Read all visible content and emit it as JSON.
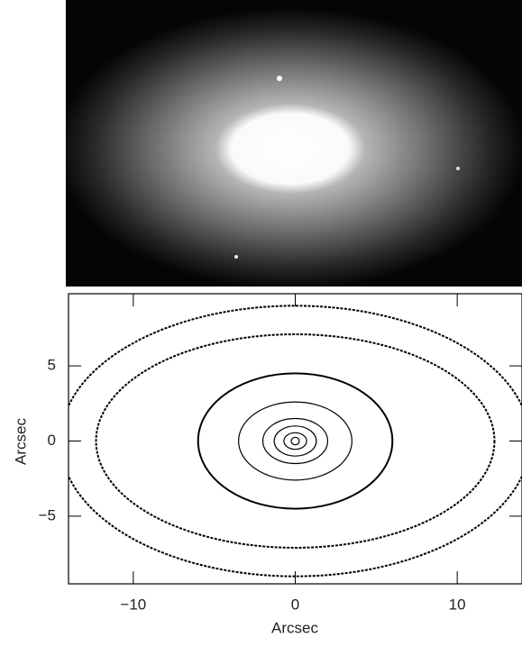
{
  "chart_data": {
    "type": "contour",
    "xlabel": "Arcsec",
    "ylabel": "Arcsec",
    "xlim": [
      -14,
      14
    ],
    "ylim": [
      -9.5,
      9.8
    ],
    "xticks": [
      {
        "value": -10,
        "label": "−10"
      },
      0,
      10
    ],
    "yticks": [
      {
        "value": -5,
        "label": "−5"
      },
      0,
      5
    ],
    "color": "#000000",
    "contours": [
      {
        "a": 0.25,
        "b": 0.25
      },
      {
        "a": 0.7,
        "b": 0.55
      },
      {
        "a": 1.3,
        "b": 1.0
      },
      {
        "a": 2.0,
        "b": 1.5
      },
      {
        "a": 3.5,
        "b": 2.6
      },
      {
        "a": 6.0,
        "b": 4.5
      },
      {
        "a": 12.3,
        "b": 7.1
      },
      {
        "a": 14.5,
        "b": 9.0
      }
    ]
  }
}
